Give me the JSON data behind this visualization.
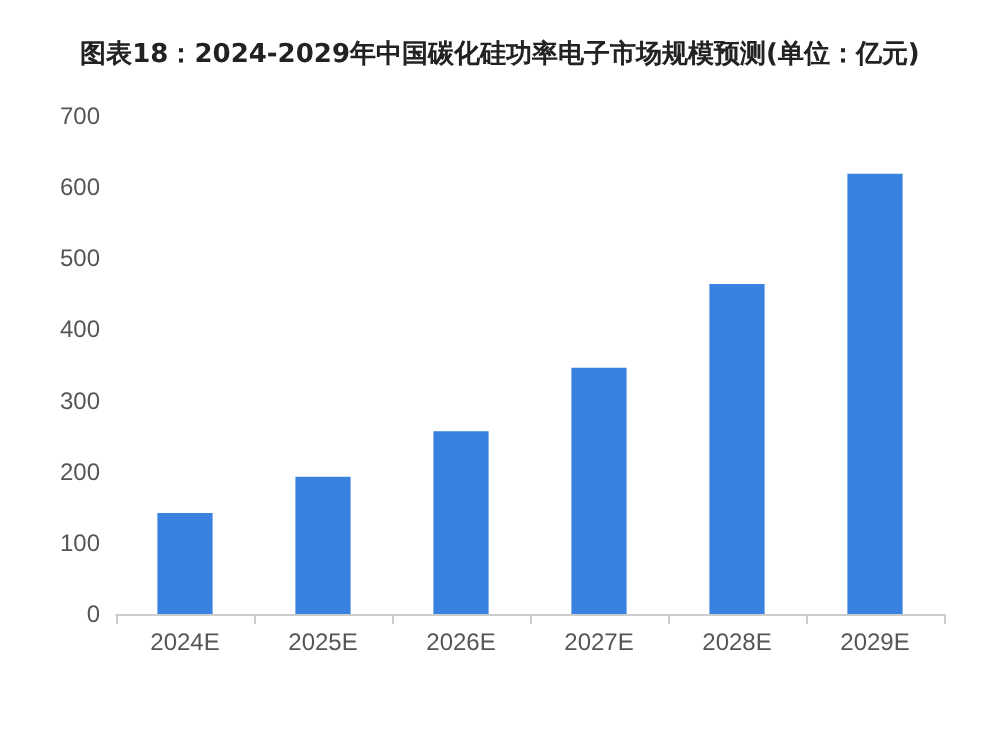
{
  "chart_data": {
    "type": "bar",
    "title": "图表18：2024-2029年中国碳化硅功率电子市场规模预测(单位：亿元)",
    "categories": [
      "2024E",
      "2025E",
      "2026E",
      "2027E",
      "2028E",
      "2029E"
    ],
    "values": [
      142,
      193,
      257,
      346,
      464,
      619
    ],
    "color": "#3a82e0",
    "ylim": [
      0,
      700
    ],
    "yticks": [
      0,
      100,
      200,
      300,
      400,
      500,
      600,
      700
    ],
    "grid": false
  }
}
